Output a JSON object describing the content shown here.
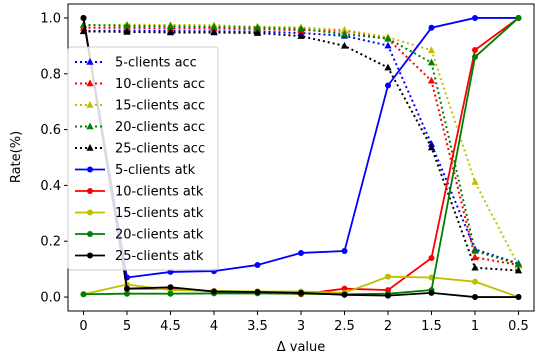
{
  "chart_data": {
    "type": "line",
    "xlabel": "Δ value",
    "ylabel": "Rate(%)",
    "categories": [
      "0",
      "5",
      "4.5",
      "4",
      "3.5",
      "3",
      "2.5",
      "2",
      "1.5",
      "1",
      "0.5"
    ],
    "ylim": [
      -0.05,
      1.05
    ],
    "yticks": [
      "0.0",
      "0.2",
      "0.4",
      "0.6",
      "0.8",
      "1.0"
    ],
    "legend_position": "center-left",
    "grid": false,
    "series": [
      {
        "name": "5-clients acc",
        "color": "#0000ff",
        "style": "dotted",
        "marker": "triangle",
        "values": [
          0.953,
          0.955,
          0.953,
          0.952,
          0.951,
          0.946,
          0.936,
          0.901,
          0.548,
          0.171,
          0.12
        ]
      },
      {
        "name": "10-clients acc",
        "color": "#ff0000",
        "style": "dotted",
        "marker": "triangle",
        "values": [
          0.965,
          0.965,
          0.962,
          0.962,
          0.96,
          0.956,
          0.955,
          0.925,
          0.775,
          0.142,
          0.115
        ]
      },
      {
        "name": "15-clients acc",
        "color": "#bfbf00",
        "style": "dotted",
        "marker": "triangle",
        "values": [
          0.973,
          0.976,
          0.975,
          0.974,
          0.969,
          0.966,
          0.957,
          0.931,
          0.884,
          0.412,
          0.112
        ]
      },
      {
        "name": "20-clients acc",
        "color": "#008000",
        "style": "dotted",
        "marker": "triangle",
        "values": [
          0.975,
          0.972,
          0.97,
          0.968,
          0.965,
          0.961,
          0.942,
          0.926,
          0.84,
          0.165,
          0.118
        ]
      },
      {
        "name": "25-clients acc",
        "color": "#000000",
        "style": "dotted",
        "marker": "triangle",
        "values": [
          0.952,
          0.95,
          0.948,
          0.948,
          0.946,
          0.935,
          0.9,
          0.822,
          0.536,
          0.105,
          0.095
        ]
      },
      {
        "name": "5-clients atk",
        "color": "#0000ff",
        "style": "solid",
        "marker": "circle",
        "values": [
          1.0,
          0.07,
          0.09,
          0.093,
          0.115,
          0.158,
          0.165,
          0.758,
          0.965,
          1.0,
          1.0
        ]
      },
      {
        "name": "10-clients atk",
        "color": "#ff0000",
        "style": "solid",
        "marker": "circle",
        "values": [
          1.0,
          0.03,
          0.03,
          0.02,
          0.02,
          0.01,
          0.03,
          0.025,
          0.14,
          0.885,
          1.0
        ]
      },
      {
        "name": "15-clients atk",
        "color": "#bfbf00",
        "style": "solid",
        "marker": "circle",
        "values": [
          0.01,
          0.045,
          0.025,
          0.022,
          0.02,
          0.02,
          0.015,
          0.073,
          0.07,
          0.055,
          0.0
        ]
      },
      {
        "name": "20-clients atk",
        "color": "#008000",
        "style": "solid",
        "marker": "circle",
        "values": [
          0.01,
          0.012,
          0.012,
          0.013,
          0.013,
          0.012,
          0.01,
          0.012,
          0.025,
          0.86,
          1.0
        ]
      },
      {
        "name": "25-clients atk",
        "color": "#000000",
        "style": "solid",
        "marker": "circle",
        "values": [
          1.0,
          0.03,
          0.035,
          0.02,
          0.018,
          0.015,
          0.008,
          0.005,
          0.015,
          0.0,
          0.0
        ]
      }
    ]
  }
}
